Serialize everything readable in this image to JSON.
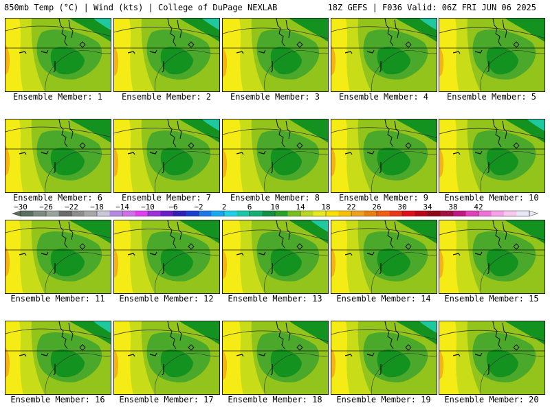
{
  "header": {
    "left": "850mb Temp (°C) | Wind (kts) | College of DuPage NEXLAB",
    "right": "18Z GEFS | F036 Valid: 06Z FRI JUN 06 2025"
  },
  "members": [
    "Ensemble Member: 1",
    "Ensemble Member: 2",
    "Ensemble Member: 3",
    "Ensemble Member: 4",
    "Ensemble Member: 5",
    "Ensemble Member: 6",
    "Ensemble Member: 7",
    "Ensemble Member: 8",
    "Ensemble Member: 9",
    "Ensemble Member: 10",
    "Ensemble Member: 11",
    "Ensemble Member: 12",
    "Ensemble Member: 13",
    "Ensemble Member: 14",
    "Ensemble Member: 15",
    "Ensemble Member: 16",
    "Ensemble Member: 17",
    "Ensemble Member: 18",
    "Ensemble Member: 19",
    "Ensemble Member: 20"
  ],
  "colorbar": {
    "labels": [
      "−30",
      "−26",
      "−22",
      "−18",
      "−14",
      "−10",
      "−6",
      "−2",
      "2",
      "6",
      "10",
      "14",
      "18",
      "22",
      "26",
      "30",
      "34",
      "38",
      "42"
    ],
    "colors": [
      "#5a6e5f",
      "#7d8a80",
      "#9aa39c",
      "#6b6b6b",
      "#8d8d8d",
      "#a8a8a8",
      "#c8c8d8",
      "#b48ae0",
      "#d070e8",
      "#e040f0",
      "#9b30d8",
      "#6a1ec8",
      "#3020b8",
      "#1840d0",
      "#1878e8",
      "#18a8f0",
      "#20d0e8",
      "#18c8a8",
      "#10b070",
      "#109040",
      "#2aa22a",
      "#78c020",
      "#b8d820",
      "#e8e820",
      "#f8e000",
      "#f8c000",
      "#f0a020",
      "#e88010",
      "#f06010",
      "#e83818",
      "#e01018",
      "#b80818",
      "#900818",
      "#a01040",
      "#c01880",
      "#e040b8",
      "#f070d8",
      "#f8a0e8",
      "#f8c8f0",
      "#e8e8f8"
    ]
  },
  "legend_colors": {
    "dark_green": "#14921f",
    "mid_green": "#4aa82a",
    "light_green": "#92c41c",
    "yellow_green": "#c8dc18",
    "yellow": "#f4ec14",
    "orange": "#f4b414",
    "teal": "#20c8a0"
  }
}
